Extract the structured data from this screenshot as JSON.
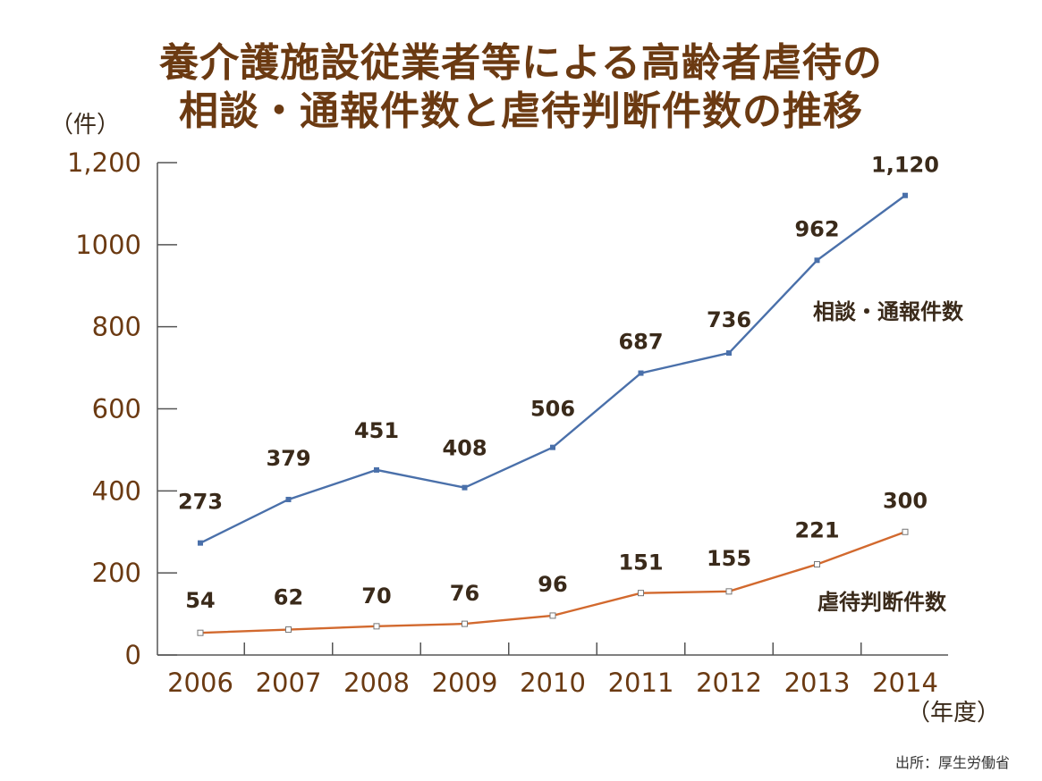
{
  "title_lines": [
    "養介護施設従業者等による高齢者虐待の",
    "相談・通報件数と虐待判断件数の推移"
  ],
  "source": "出所：厚生労働省",
  "chart_data": {
    "type": "line",
    "title": "養介護施設従業者等による高齢者虐待の相談・通報件数と虐待判断件数の推移",
    "ylabel": "（件）",
    "xlabel": "（年度）",
    "categories": [
      "2006",
      "2007",
      "2008",
      "2009",
      "2010",
      "2011",
      "2012",
      "2013",
      "2014"
    ],
    "ylim": [
      0,
      1200
    ],
    "yticks": [
      0,
      200,
      400,
      600,
      800,
      1000,
      1200
    ],
    "ytick_labels": [
      "0",
      "200",
      "400",
      "600",
      "800",
      "1000",
      "1,200"
    ],
    "grid": false,
    "legend": "direct labels",
    "series": [
      {
        "name": "相談・通報件数",
        "color": "#4a70aa",
        "marker": "filled-square",
        "values": [
          273,
          379,
          451,
          408,
          506,
          687,
          736,
          962,
          1120
        ],
        "labels": [
          "273",
          "379",
          "451",
          "408",
          "506",
          "687",
          "736",
          "962",
          "1,120"
        ]
      },
      {
        "name": "虐待判断件数",
        "color": "#d2692e",
        "marker": "hollow-square",
        "values": [
          54,
          62,
          70,
          76,
          96,
          151,
          155,
          221,
          300
        ],
        "labels": [
          "54",
          "62",
          "70",
          "76",
          "96",
          "151",
          "155",
          "221",
          "300"
        ]
      }
    ],
    "axis_color": "#555555",
    "text_color": "#6b3a12"
  }
}
